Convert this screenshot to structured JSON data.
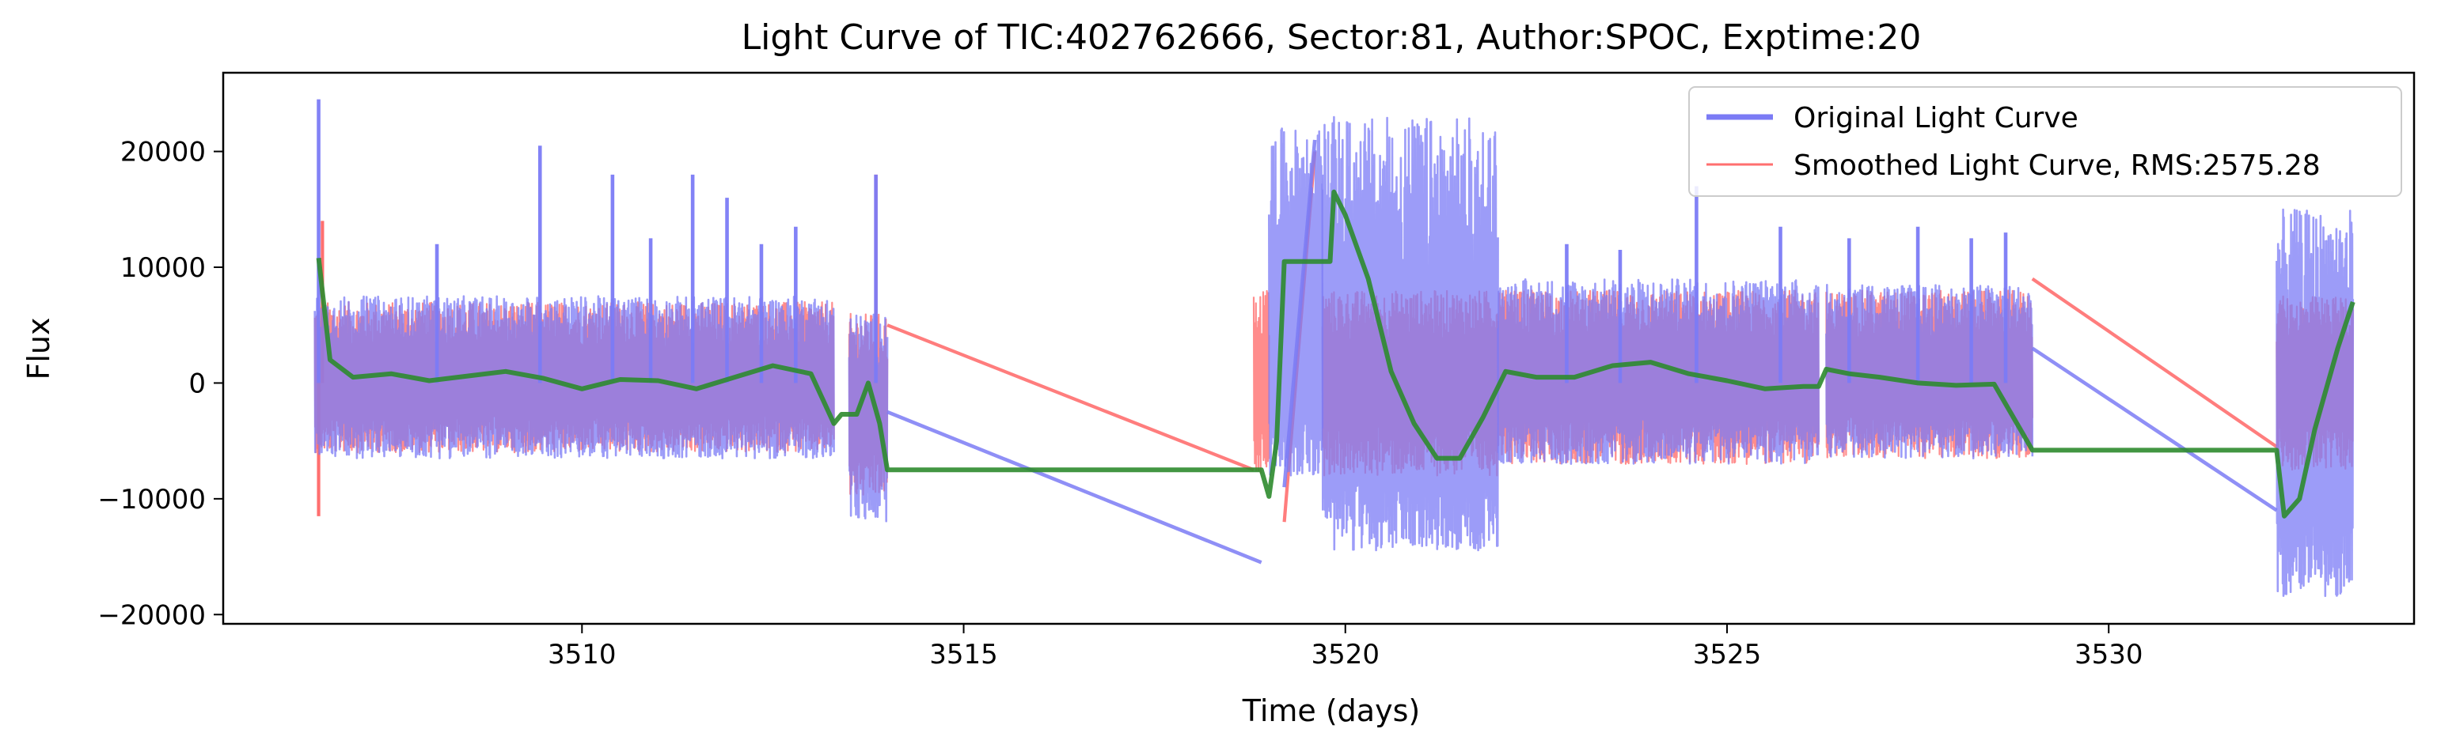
{
  "chart_data": {
    "type": "line",
    "title": "Light Curve of TIC:402762666, Sector:81, Author:SPOC, Exptime:20",
    "xlabel": "Time (days)",
    "ylabel": "Flux",
    "xlim": [
      3505.3,
      3534.0
    ],
    "ylim": [
      -20800,
      26800
    ],
    "xticks": [
      3510,
      3515,
      3520,
      3525,
      3530
    ],
    "yticks": [
      -20000,
      -10000,
      0,
      10000,
      20000
    ],
    "grid": false,
    "legend_position": "top-right",
    "series": [
      {
        "name": "Original Light Curve",
        "color": "#7b7bf5",
        "segments": [
          {
            "x_start": 3506.5,
            "x_end": 3513.3,
            "low": -6500,
            "high": 7500,
            "mean": -200
          },
          {
            "x_start": 3513.5,
            "x_end": 3514.0,
            "low": -12000,
            "high": 6000,
            "mean": -2500
          },
          {
            "x_start": 3519.0,
            "x_end": 3519.7,
            "low": -8000,
            "high": 22000,
            "mean": 3000
          },
          {
            "x_start": 3519.7,
            "x_end": 3522.0,
            "low": -14500,
            "high": 23000,
            "mean": -3000
          },
          {
            "x_start": 3522.0,
            "x_end": 3526.2,
            "low": -7000,
            "high": 9000,
            "mean": 500
          },
          {
            "x_start": 3526.3,
            "x_end": 3529.0,
            "low": -6500,
            "high": 8500,
            "mean": 200
          },
          {
            "x_start": 3532.2,
            "x_end": 3533.2,
            "low": -18500,
            "high": 15000,
            "mean": -4000
          }
        ],
        "connectors": [
          {
            "x": [
              3514.0,
              3518.9
            ],
            "y": [
              -2500,
              -15500
            ]
          },
          {
            "x": [
              3519.2,
              3519.6
            ],
            "y": [
              -9000,
              21000
            ]
          },
          {
            "x": [
              3529.0,
              3532.2
            ],
            "y": [
              3000,
              -11000
            ]
          }
        ],
        "spikes": [
          {
            "x": 3506.55,
            "y": 24500
          },
          {
            "x": 3509.45,
            "y": 20500
          },
          {
            "x": 3510.4,
            "y": 18000
          },
          {
            "x": 3511.45,
            "y": 18000
          },
          {
            "x": 3511.9,
            "y": 16000
          },
          {
            "x": 3512.8,
            "y": 13500
          },
          {
            "x": 3513.85,
            "y": 18000
          },
          {
            "x": 3508.1,
            "y": 12000
          },
          {
            "x": 3510.9,
            "y": 12500
          },
          {
            "x": 3512.35,
            "y": 12000
          },
          {
            "x": 3524.6,
            "y": 17000
          },
          {
            "x": 3525.7,
            "y": 13500
          },
          {
            "x": 3526.6,
            "y": 12500
          },
          {
            "x": 3527.5,
            "y": 13500
          },
          {
            "x": 3528.2,
            "y": 12500
          },
          {
            "x": 3528.65,
            "y": 13000
          },
          {
            "x": 3522.9,
            "y": 12000
          },
          {
            "x": 3523.6,
            "y": 11500
          }
        ]
      },
      {
        "name": "Smoothed Light Curve, RMS:2575.28",
        "color": "#ff6f6f",
        "segments": [
          {
            "x_start": 3506.5,
            "x_end": 3513.3,
            "low": -6000,
            "high": 7000,
            "mean": -200
          },
          {
            "x_start": 3513.5,
            "x_end": 3514.0,
            "low": -10000,
            "high": 6000,
            "mean": -2000
          },
          {
            "x_start": 3518.8,
            "x_end": 3519.0,
            "low": -8000,
            "high": 8000,
            "mean": 0
          },
          {
            "x_start": 3519.7,
            "x_end": 3522.0,
            "low": -8000,
            "high": 8000,
            "mean": 0
          },
          {
            "x_start": 3522.0,
            "x_end": 3526.2,
            "low": -7000,
            "high": 8000,
            "mean": 500
          },
          {
            "x_start": 3526.3,
            "x_end": 3529.0,
            "low": -6500,
            "high": 8000,
            "mean": 200
          },
          {
            "x_start": 3532.2,
            "x_end": 3533.2,
            "low": -7500,
            "high": 7500,
            "mean": 0
          }
        ],
        "connectors": [
          {
            "x": [
              3514.0,
              3518.8
            ],
            "y": [
              5000,
              -7500
            ]
          },
          {
            "x": [
              3519.2,
              3519.6
            ],
            "y": [
              -12000,
              20000
            ]
          },
          {
            "x": [
              3529.0,
              3532.2
            ],
            "y": [
              9000,
              -5500
            ]
          }
        ],
        "spikes": [
          {
            "x": 3506.55,
            "y": -11500
          },
          {
            "x": 3513.85,
            "y": 18000
          },
          {
            "x": 3506.6,
            "y": 14000
          }
        ]
      },
      {
        "name": "",
        "color": "#2e8b2e",
        "x": [
          3506.55,
          3506.7,
          3507.0,
          3507.5,
          3508.0,
          3508.5,
          3509.0,
          3509.5,
          3510.0,
          3510.5,
          3511.0,
          3511.5,
          3512.0,
          3512.5,
          3513.0,
          3513.3,
          3513.4,
          3513.6,
          3513.75,
          3513.9,
          3514.0,
          3518.9,
          3519.0,
          3519.1,
          3519.2,
          3519.8,
          3519.85,
          3520.0,
          3520.3,
          3520.6,
          3520.9,
          3521.2,
          3521.5,
          3521.8,
          3522.1,
          3522.5,
          3523.0,
          3523.5,
          3524.0,
          3524.5,
          3525.0,
          3525.5,
          3526.0,
          3526.2,
          3526.3,
          3526.6,
          3527.0,
          3527.5,
          3528.0,
          3528.5,
          3529.0,
          3529.05,
          3532.2,
          3532.3,
          3532.5,
          3532.7,
          3533.0,
          3533.2
        ],
        "y": [
          10800,
          2000,
          500,
          800,
          200,
          600,
          1000,
          400,
          -500,
          300,
          200,
          -500,
          500,
          1500,
          800,
          -3500,
          -2700,
          -2700,
          0,
          -3500,
          -7500,
          -7500,
          -9800,
          -5000,
          10500,
          10500,
          16500,
          14500,
          9000,
          1000,
          -3500,
          -6500,
          -6500,
          -3000,
          1000,
          500,
          500,
          1500,
          1800,
          800,
          200,
          -500,
          -300,
          -300,
          1200,
          800,
          500,
          0,
          -200,
          -100,
          -5800,
          -5800,
          -5800,
          -11500,
          -10000,
          -4000,
          3000,
          7000
        ]
      }
    ]
  }
}
